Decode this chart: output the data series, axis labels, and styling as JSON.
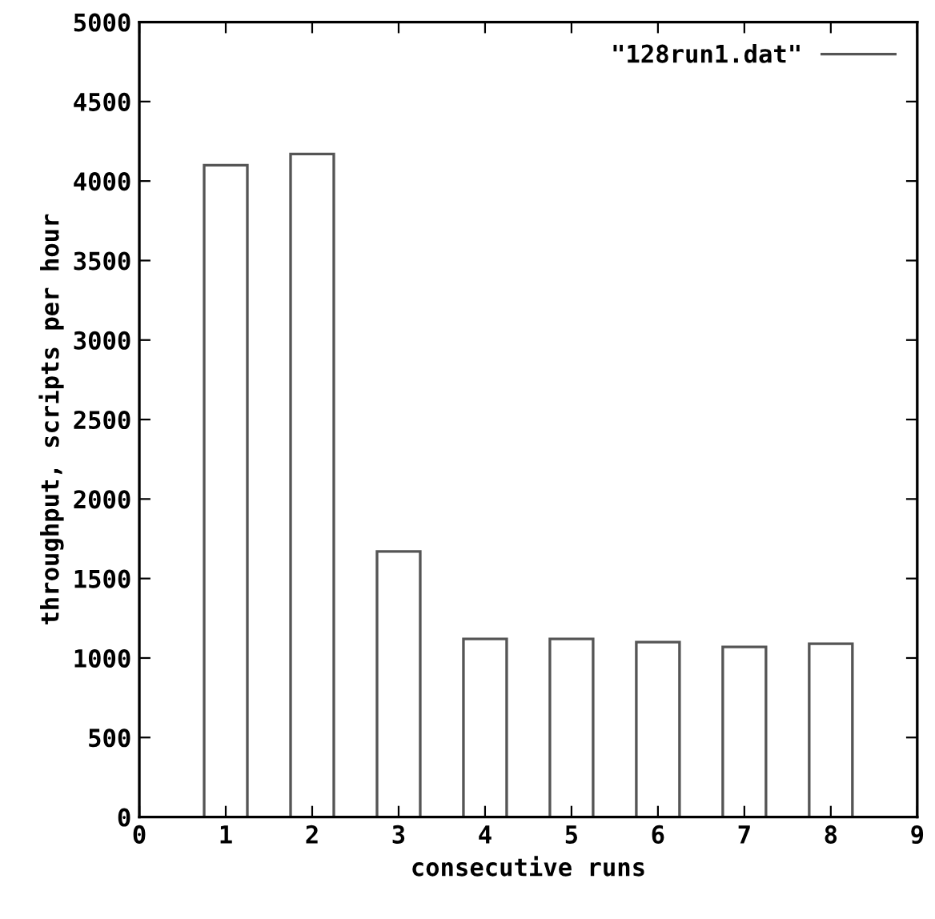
{
  "chart_data": {
    "type": "bar",
    "xlabel": "consecutive runs",
    "ylabel": "throughput, scripts per hour",
    "x": [
      1,
      2,
      3,
      4,
      5,
      6,
      7,
      8
    ],
    "series": [
      {
        "name": "\"128run1.dat\"",
        "color": "#555555",
        "values": [
          4100,
          4170,
          1670,
          1120,
          1120,
          1100,
          1070,
          1090
        ]
      }
    ],
    "xlim": [
      0,
      9
    ],
    "xticks": [
      0,
      1,
      2,
      3,
      4,
      5,
      6,
      7,
      8,
      9
    ],
    "ylim": [
      0,
      5000
    ],
    "yticks": [
      0,
      500,
      1000,
      1500,
      2000,
      2500,
      3000,
      3500,
      4000,
      4500,
      5000
    ],
    "grid": false,
    "legend": "top right"
  }
}
